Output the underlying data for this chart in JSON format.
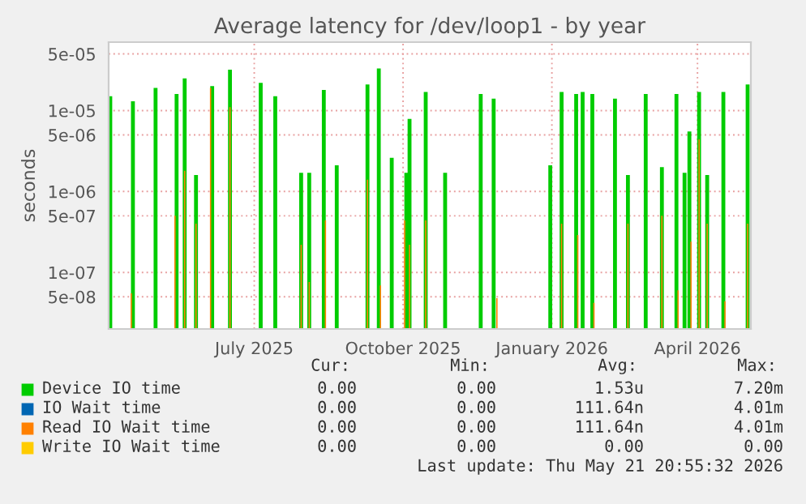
{
  "chart_data": {
    "type": "bar",
    "title": "Average latency for /dev/loop1 - by year",
    "ylabel": "seconds",
    "log": true,
    "ylim": [
      2e-08,
      7e-05
    ],
    "yticks": [
      5e-08,
      1e-07,
      5e-07,
      1e-06,
      5e-06,
      1e-05,
      5e-05
    ],
    "xlim": [
      "2025-04-02",
      "2026-05-04"
    ],
    "xticks": [
      {
        "value": "2025-07-01",
        "label": "July 2025"
      },
      {
        "value": "2025-10-01",
        "label": "October 2025"
      },
      {
        "value": "2026-01-01",
        "label": "January 2026"
      },
      {
        "value": "2026-04-01",
        "label": "April 2026"
      }
    ],
    "grid": true,
    "legend": "bottom",
    "series": [
      {
        "name": "Device IO time",
        "color": "#00cc00",
        "x": [
          "2025-04-03",
          "2025-04-17",
          "2025-05-01",
          "2025-05-14",
          "2025-05-19",
          "2025-05-26",
          "2025-06-05",
          "2025-06-16",
          "2025-07-05",
          "2025-07-14",
          "2025-07-30",
          "2025-08-04",
          "2025-08-13",
          "2025-08-21",
          "2025-09-09",
          "2025-09-16",
          "2025-09-24",
          "2025-10-03",
          "2025-10-05",
          "2025-10-15",
          "2025-10-27",
          "2025-11-18",
          "2025-11-26",
          "2025-12-31",
          "2026-01-07",
          "2026-01-16",
          "2026-01-20",
          "2026-01-26",
          "2026-02-09",
          "2026-02-17",
          "2026-02-28",
          "2026-03-10",
          "2026-03-19",
          "2026-03-24",
          "2026-03-27",
          "2026-04-02",
          "2026-04-07",
          "2026-04-17",
          "2026-05-02"
        ],
        "values": [
          1.5e-05,
          1.3e-05,
          1.9e-05,
          1.6e-05,
          2.5e-05,
          1.6e-06,
          2e-05,
          3.2e-05,
          2.2e-05,
          1.5e-05,
          1.7e-06,
          1.7e-06,
          1.8e-05,
          2.1e-06,
          2.1e-05,
          3.3e-05,
          2.6e-06,
          1.7e-06,
          7.9e-06,
          1.7e-05,
          1.7e-06,
          1.6e-05,
          1.4e-05,
          2.1e-06,
          1.7e-05,
          1.6e-05,
          1.7e-05,
          1.6e-05,
          1.4e-05,
          1.6e-06,
          1.6e-05,
          2e-06,
          1.6e-05,
          1.7e-06,
          5.5e-06,
          1.7e-05,
          1.6e-06,
          1.7e-05,
          2.1e-05
        ]
      },
      {
        "name": "IO Wait time",
        "color": "#0066b3"
      },
      {
        "name": "Read IO Wait time",
        "color": "#ff8000",
        "x": [
          "2025-04-16",
          "2025-05-13",
          "2025-05-19",
          "2025-05-26",
          "2025-06-04",
          "2025-06-16",
          "2025-07-30",
          "2025-08-04",
          "2025-08-14",
          "2025-09-09",
          "2025-09-17",
          "2025-10-02",
          "2025-10-05",
          "2025-10-15",
          "2025-11-28",
          "2026-01-07",
          "2026-01-17",
          "2026-01-27",
          "2026-02-17",
          "2026-03-10",
          "2026-03-20",
          "2026-03-28",
          "2026-04-02",
          "2026-04-07",
          "2026-04-18",
          "2026-05-02"
        ],
        "values": [
          5.5e-08,
          5e-07,
          1.8e-06,
          4e-07,
          1.9e-05,
          1.1e-05,
          2.2e-07,
          7.6e-08,
          4.4e-07,
          1.4e-06,
          6.9e-08,
          4.4e-07,
          2.2e-07,
          4.4e-07,
          4.8e-08,
          4e-07,
          2.9e-07,
          4.2e-08,
          4e-07,
          5e-07,
          6e-08,
          2.4e-07,
          4.4e-06,
          4e-07,
          4.4e-08,
          4e-07
        ]
      },
      {
        "name": "Write IO Wait time",
        "color": "#ffcc00"
      }
    ],
    "annotations": [
      "Cur:",
      "Min:",
      "Avg:",
      "Max:",
      "0.00",
      "0.00",
      "1.53u",
      "7.20m",
      "0.00",
      "0.00",
      "111.64n",
      "4.01m",
      "0.00",
      "0.00",
      "111.64n",
      "4.01m",
      "0.00",
      "0.00",
      "0.00",
      "0.00",
      "Last update: Thu May 21 20:55:32 2026"
    ]
  }
}
